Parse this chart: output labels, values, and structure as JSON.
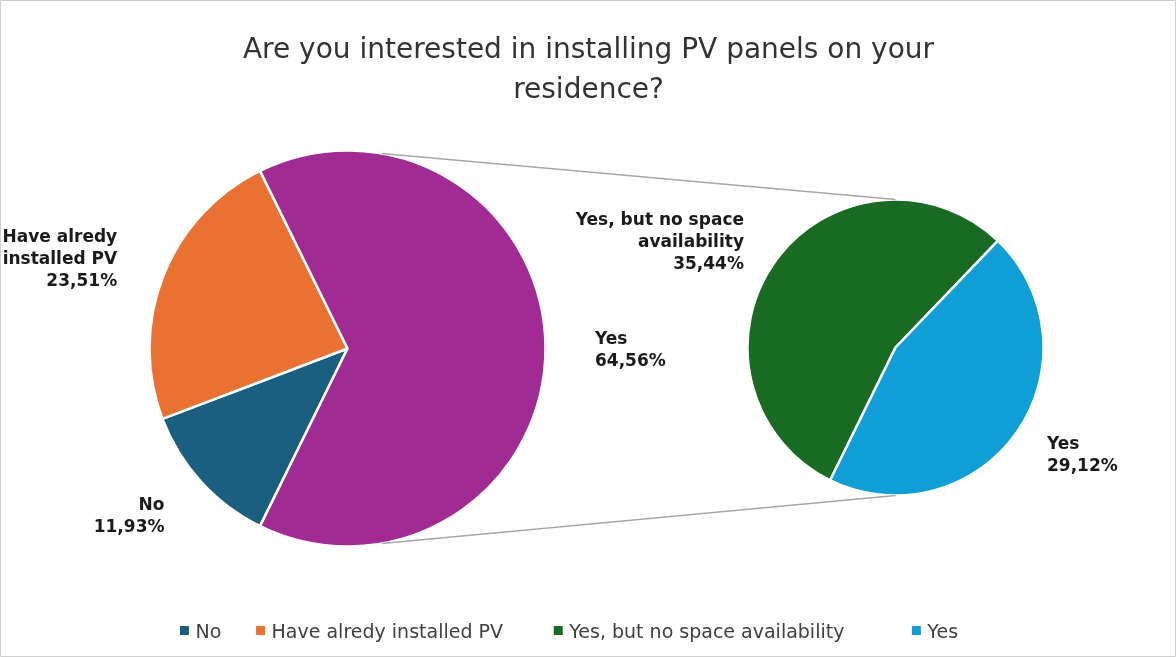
{
  "chart_data": [
    {
      "type": "pie",
      "title": "Are you interested in installing PV panels on your residence?",
      "categories": [
        "No",
        "Have alredy installed PV",
        "Yes"
      ],
      "values": [
        11.93,
        23.51,
        64.56
      ],
      "colors": [
        "#1a5e80",
        "#e97132",
        "#a02b93"
      ],
      "value_labels": [
        "11,93%",
        "23,51%",
        "64,56%"
      ],
      "legend": "bottom"
    },
    {
      "type": "pie",
      "categories": [
        "Yes, but no space availability",
        "Yes"
      ],
      "values": [
        35.44,
        29.12
      ],
      "colors": [
        "#196b24",
        "#0f9ed5"
      ],
      "value_labels": [
        "35,44%",
        "29,12%"
      ],
      "legend": "bottom"
    }
  ]
}
